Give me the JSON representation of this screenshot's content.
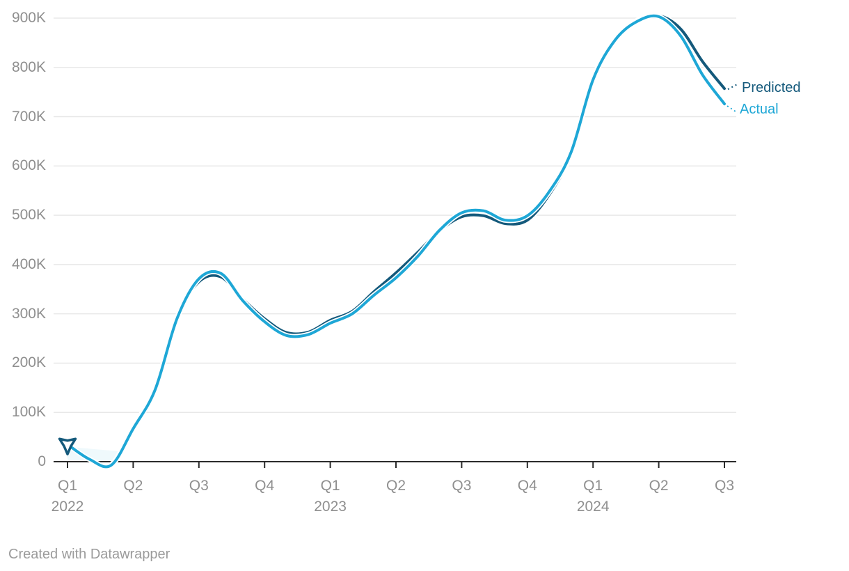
{
  "chart_data": {
    "type": "line",
    "title": "",
    "value_unit": "thousands",
    "ylim_thousands": [
      0,
      900
    ],
    "grid": "horizontal",
    "legend_position": "right-of-line-ends",
    "x": [
      "2022-01",
      "2022-02",
      "2022-03",
      "2022-04",
      "2022-05",
      "2022-06",
      "2022-07",
      "2022-08",
      "2022-09",
      "2022-10",
      "2022-11",
      "2022-12",
      "2023-01",
      "2023-02",
      "2023-03",
      "2023-04",
      "2023-05",
      "2023-06",
      "2023-07",
      "2023-08",
      "2023-09",
      "2023-10",
      "2023-11",
      "2023-12",
      "2024-01",
      "2024-02",
      "2024-03",
      "2024-04",
      "2024-05",
      "2024-06",
      "2024-07"
    ],
    "series": [
      {
        "name": "Predicted",
        "color": "#14597b",
        "values_thousands": [
          35,
          5,
          -6,
          70,
          150,
          292,
          365,
          375,
          330,
          290,
          262,
          263,
          287,
          305,
          345,
          383,
          425,
          469,
          497,
          499,
          483,
          490,
          542,
          625,
          778,
          858,
          895,
          905,
          878,
          812,
          757
        ]
      },
      {
        "name": "Actual",
        "color": "#1ea7d6",
        "values_thousands": [
          35,
          5,
          -7,
          67,
          146,
          290,
          371,
          382,
          327,
          284,
          256,
          258,
          281,
          300,
          338,
          373,
          417,
          470,
          505,
          509,
          490,
          499,
          548,
          628,
          775,
          855,
          893,
          903,
          864,
          785,
          726
        ]
      }
    ],
    "x_ticks": [
      {
        "month_index": 0,
        "label": "Q1",
        "year": "2022"
      },
      {
        "month_index": 3,
        "label": "Q2"
      },
      {
        "month_index": 6,
        "label": "Q3"
      },
      {
        "month_index": 9,
        "label": "Q4"
      },
      {
        "month_index": 12,
        "label": "Q1",
        "year": "2023"
      },
      {
        "month_index": 15,
        "label": "Q2"
      },
      {
        "month_index": 18,
        "label": "Q3"
      },
      {
        "month_index": 21,
        "label": "Q4"
      },
      {
        "month_index": 24,
        "label": "Q1",
        "year": "2024"
      },
      {
        "month_index": 27,
        "label": "Q2"
      },
      {
        "month_index": 30,
        "label": "Q3"
      }
    ],
    "y_ticks": [
      {
        "value": 900,
        "label": "900K"
      },
      {
        "value": 800,
        "label": "800K"
      },
      {
        "value": 700,
        "label": "700K"
      },
      {
        "value": 600,
        "label": "600K"
      },
      {
        "value": 500,
        "label": "500K"
      },
      {
        "value": 400,
        "label": "400K"
      },
      {
        "value": 300,
        "label": "300K"
      },
      {
        "value": 200,
        "label": "200K"
      },
      {
        "value": 100,
        "label": "100K"
      },
      {
        "value": 0,
        "label": "0"
      }
    ],
    "start_marker": {
      "shape": "three-point-star",
      "x": "2022-01",
      "value_thousands": 35,
      "series": "both"
    }
  },
  "colors": {
    "predicted": "#14597b",
    "actual": "#1ea7d6",
    "gridline": "#e8e8e8",
    "axis": "#2b2b2b",
    "tick_label": "#8f8f8f",
    "credit_text": "#9b9b9b"
  },
  "footer": {
    "credit": "Created with Datawrapper"
  }
}
